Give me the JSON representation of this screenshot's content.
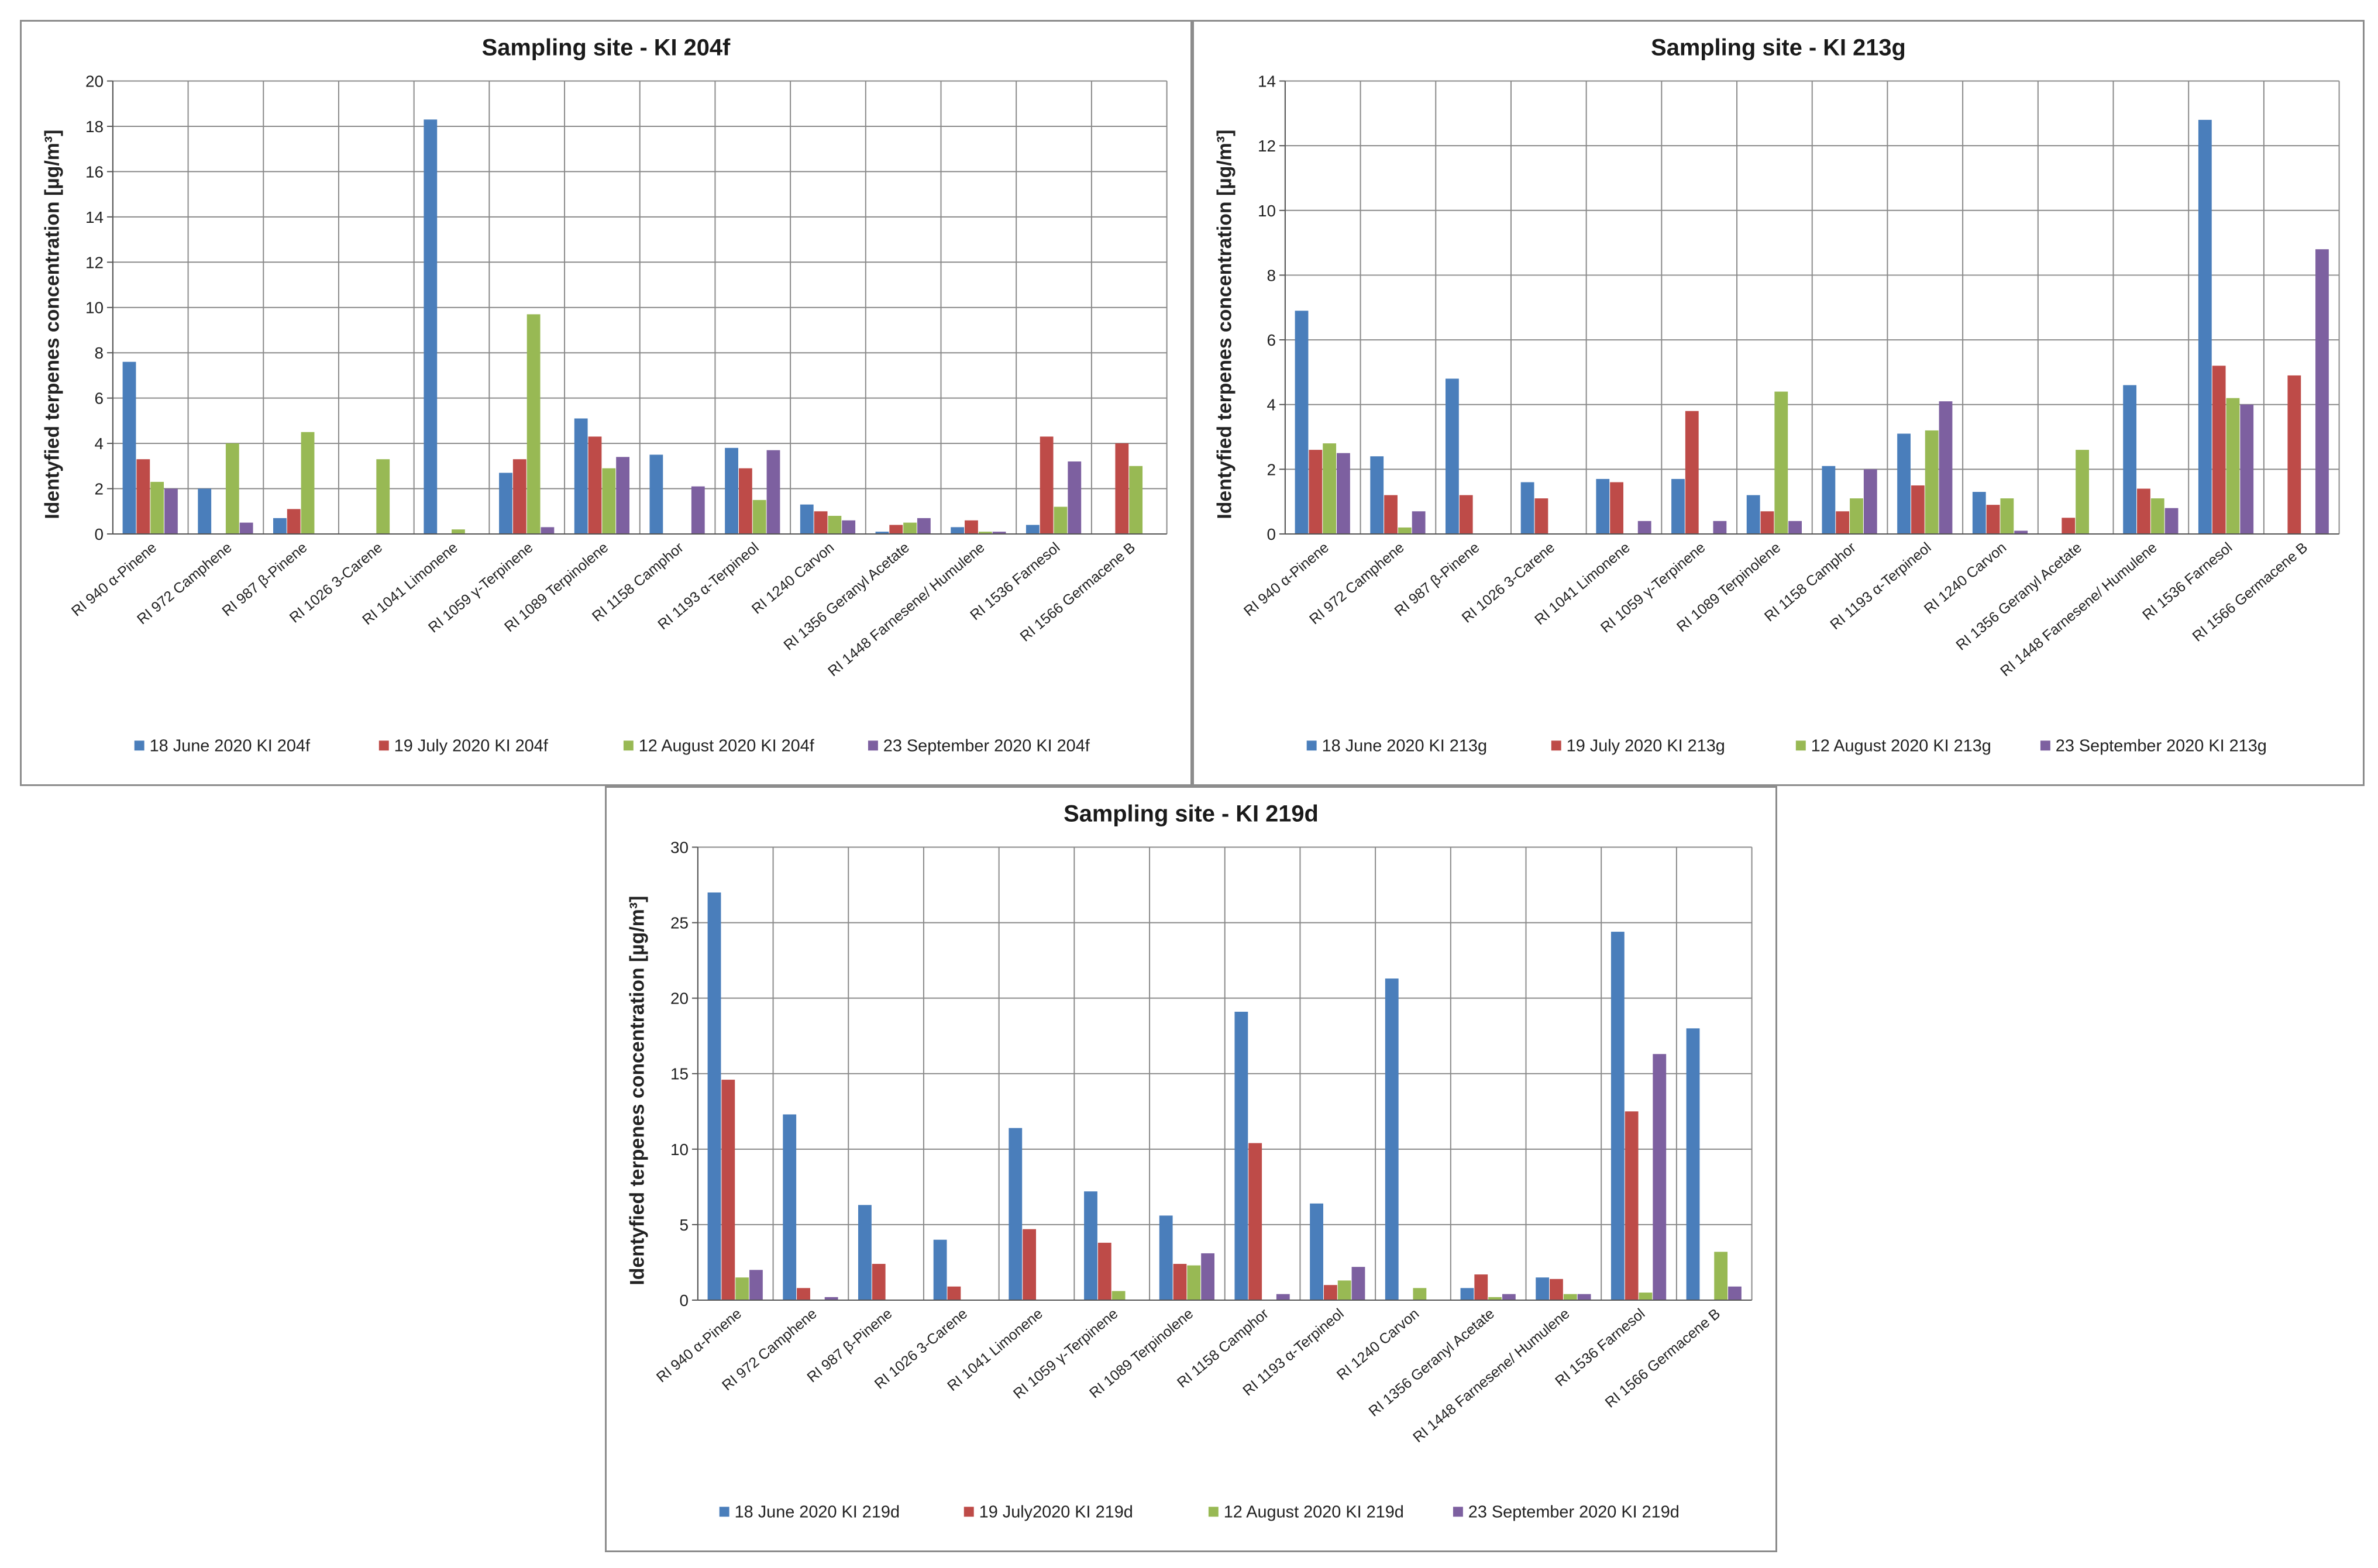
{
  "chart_data": [
    {
      "type": "bar",
      "title": "Sampling site - KI 204f",
      "ylabel": "Identyfied terpenes concentration [µg/m³]",
      "ylim": [
        0,
        20
      ],
      "yticks": [
        0,
        2,
        4,
        6,
        8,
        10,
        12,
        14,
        16,
        18,
        20
      ],
      "grid": true,
      "legend": "bottom",
      "categories": [
        "RI 940 α-Pinene",
        "RI 972 Camphene",
        "RI 987 β-Pinene",
        "RI 1026 3-Carene",
        "RI 1041 Limonene",
        "RI 1059 γ-Terpinene",
        "RI 1089 Terpinolene",
        "RI 1158 Camphor",
        "RI 1193 α-Terpineol",
        "RI 1240  Carvon",
        "RI 1356 Geranyl Acetate",
        "RI 1448 Farnesene/ Humulene",
        "RI 1536 Farnesol",
        "RI 1566 Germacene B"
      ],
      "series": [
        {
          "name": "18 June 2020 KI 204f",
          "color": "#4a7ebb",
          "values": [
            7.6,
            2.0,
            0.7,
            0,
            18.3,
            2.7,
            5.1,
            3.5,
            3.8,
            1.3,
            0.1,
            0.3,
            0.4,
            0
          ]
        },
        {
          "name": "19 July 2020 KI 204f",
          "color": "#be4b48",
          "values": [
            3.3,
            0,
            1.1,
            0,
            0,
            3.3,
            4.3,
            0,
            2.9,
            1.0,
            0.4,
            0.6,
            4.3,
            4.0
          ]
        },
        {
          "name": "12 August 2020 KI 204f",
          "color": "#98b954",
          "values": [
            2.3,
            4.0,
            4.5,
            3.3,
            0.2,
            9.7,
            2.9,
            0,
            1.5,
            0.8,
            0.5,
            0.1,
            1.2,
            3.0
          ]
        },
        {
          "name": "23 September 2020 KI 204f",
          "color": "#7d60a0",
          "values": [
            2.0,
            0.5,
            0,
            0,
            0,
            0.3,
            3.4,
            2.1,
            3.7,
            0.6,
            0.7,
            0.1,
            3.2,
            0
          ]
        }
      ]
    },
    {
      "type": "bar",
      "title": "Sampling site - KI 213g",
      "ylabel": "Identyfied terpenes concentration [µg/m³]",
      "ylim": [
        0,
        14
      ],
      "yticks": [
        0,
        2,
        4,
        6,
        8,
        10,
        12,
        14
      ],
      "grid": true,
      "legend": "bottom",
      "categories": [
        "RI 940 α-Pinene",
        "RI 972 Camphene",
        "RI 987 β-Pinene",
        "RI 1026 3-Carene",
        "RI 1041 Limonene",
        "RI 1059 γ-Terpinene",
        "RI 1089 Terpinolene",
        "RI 1158 Camphor",
        "RI 1193 α-Terpineol",
        "RI 1240  Carvon",
        "RI 1356 Geranyl Acetate",
        "RI 1448 Farnesene/ Humulene",
        "RI 1536 Farnesol",
        "RI 1566 Germacene B"
      ],
      "series": [
        {
          "name": "18 June 2020 KI 213g",
          "color": "#4a7ebb",
          "values": [
            6.9,
            2.4,
            4.8,
            1.6,
            1.7,
            1.7,
            1.2,
            2.1,
            3.1,
            1.3,
            0,
            4.6,
            12.8,
            0
          ]
        },
        {
          "name": "19 July 2020 KI 213g",
          "color": "#be4b48",
          "values": [
            2.6,
            1.2,
            1.2,
            1.1,
            1.6,
            3.8,
            0.7,
            0.7,
            1.5,
            0.9,
            0.5,
            1.4,
            5.2,
            4.9
          ]
        },
        {
          "name": "12 August 2020 KI 213g",
          "color": "#98b954",
          "values": [
            2.8,
            0.2,
            0,
            0,
            0,
            0,
            4.4,
            1.1,
            3.2,
            1.1,
            2.6,
            1.1,
            4.2,
            0
          ]
        },
        {
          "name": "23 September 2020 KI 213g",
          "color": "#7d60a0",
          "values": [
            2.5,
            0.7,
            0,
            0,
            0.4,
            0.4,
            0.4,
            2.0,
            4.1,
            0.1,
            0,
            0.8,
            4.0,
            8.8
          ]
        }
      ]
    },
    {
      "type": "bar",
      "title": "Sampling site - KI 219d",
      "ylabel": "Identyfied terpenes concentration [µg/m³]",
      "ylim": [
        0,
        30
      ],
      "yticks": [
        0,
        5,
        10,
        15,
        20,
        25,
        30
      ],
      "grid": true,
      "legend": "bottom",
      "categories": [
        "RI 940 α-Pinene",
        "RI 972 Camphene",
        "RI 987 β-Pinene",
        "RI 1026 3-Carene",
        "RI 1041 Limonene",
        "RI 1059 γ-Terpinene",
        "RI 1089 Terpinolene",
        "RI 1158 Camphor",
        "RI 1193 α-Terpineol",
        "RI 1240  Carvon",
        "RI 1356 Geranyl Acetate",
        "RI 1448 Farnesene/ Humulene",
        "RI 1536 Farnesol",
        "RI 1566 Germacene B"
      ],
      "series": [
        {
          "name": "18 June 2020 KI 219d",
          "color": "#4a7ebb",
          "values": [
            27.0,
            12.3,
            6.3,
            4.0,
            11.4,
            7.2,
            5.6,
            19.1,
            6.4,
            21.3,
            0.8,
            1.5,
            24.4,
            18.0
          ]
        },
        {
          "name": "19 July2020 KI 219d",
          "color": "#be4b48",
          "values": [
            14.6,
            0.8,
            2.4,
            0.9,
            4.7,
            3.8,
            2.4,
            10.4,
            1.0,
            0,
            1.7,
            1.4,
            12.5,
            0
          ]
        },
        {
          "name": "12 August 2020 KI 219d",
          "color": "#98b954",
          "values": [
            1.5,
            0,
            0,
            0,
            0,
            0.6,
            2.3,
            0,
            1.3,
            0.8,
            0.2,
            0.4,
            0.5,
            3.2
          ]
        },
        {
          "name": "23 September 2020 KI 219d",
          "color": "#7d60a0",
          "values": [
            2.0,
            0.2,
            0,
            0,
            0,
            0,
            3.1,
            0.4,
            2.2,
            0,
            0.4,
            0.4,
            16.3,
            0.9
          ]
        }
      ]
    }
  ]
}
